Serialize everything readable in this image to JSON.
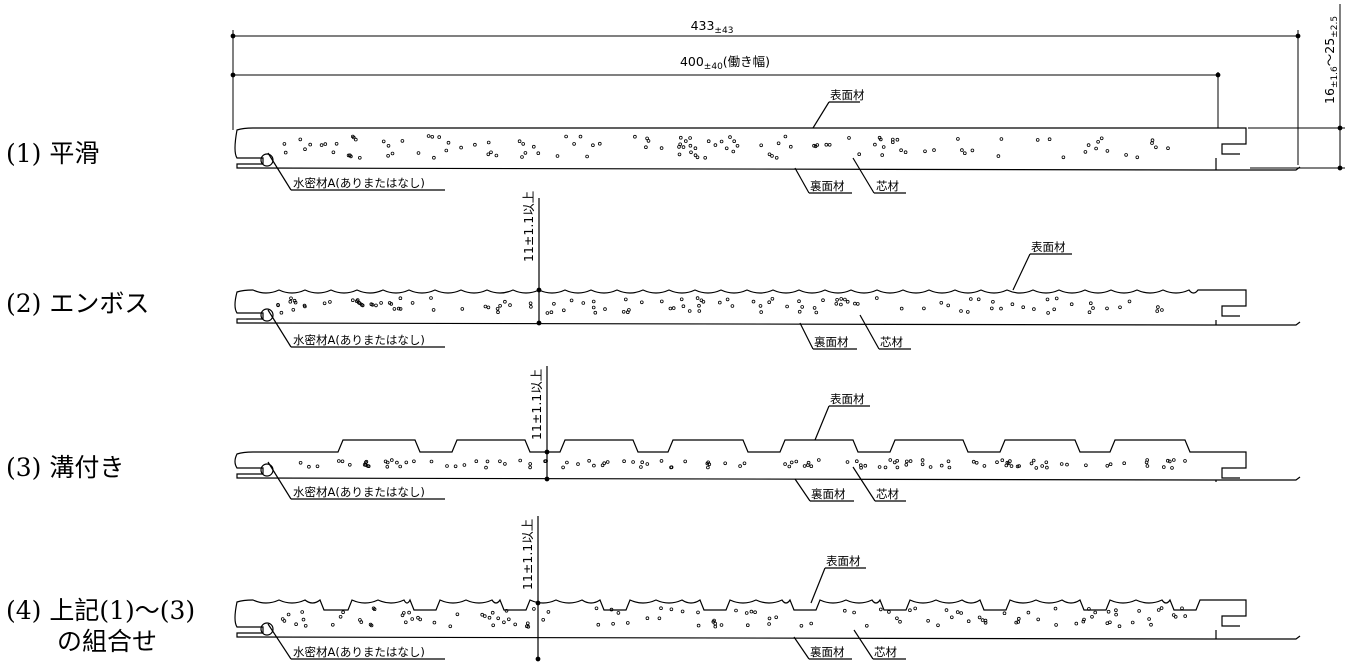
{
  "panels": [
    {
      "caption": "(1) 平滑",
      "caption_line2": "",
      "surface_label": "表面材",
      "seal_label": "水密材A(ありまたはなし)",
      "back_label": "裏面材",
      "core_label": "芯材",
      "thickness_label": ""
    },
    {
      "caption": "(2) エンボス",
      "caption_line2": "",
      "surface_label": "表面材",
      "seal_label": "水密材A(ありまたはなし)",
      "back_label": "裏面材",
      "core_label": "芯材",
      "thickness_label": "11±1.1以上"
    },
    {
      "caption": "(3) 溝付き",
      "caption_line2": "",
      "surface_label": "表面材",
      "seal_label": "水密材A(ありまたはなし)",
      "back_label": "裏面材",
      "core_label": "芯材",
      "thickness_label": "11±1.1以上"
    },
    {
      "caption": "(4) 上記(1)～(3)",
      "caption_line2": "の組合せ",
      "surface_label": "表面材",
      "seal_label": "水密材A(ありまたはなし)",
      "back_label": "裏面材",
      "core_label": "芯材",
      "thickness_label": "11±1.1以上"
    }
  ],
  "dimensions": {
    "overall_width": {
      "main": "433",
      "tol": "±43"
    },
    "working_width": {
      "main": "400",
      "tol": "±40",
      "note": "(働き幅)"
    },
    "thickness": {
      "a": "16",
      "a_tol": "±1.6",
      "sep": "〜",
      "b": "25",
      "b_tol": "±2.5"
    },
    "thickness_min": {
      "main": "11",
      "tol": "±1.1",
      "note": "以上"
    }
  }
}
